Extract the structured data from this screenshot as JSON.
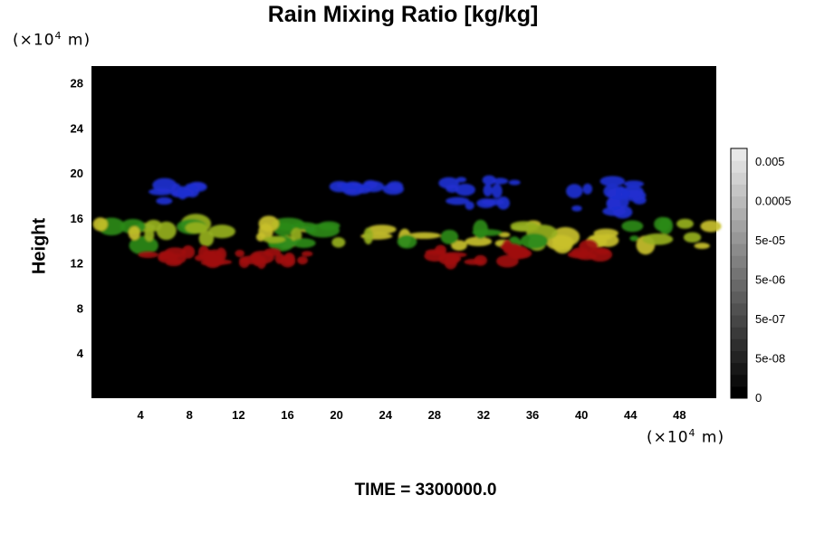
{
  "chart_data": {
    "type": "heatmap",
    "title": "Rain Mixing Ratio [kg/kg]",
    "ylabel": "Height",
    "x_unit_label": "(×10⁴ m)",
    "y_unit_label": "(×10⁴ m)",
    "x_unit_prefix": "(×10",
    "x_unit_exp": "4",
    "x_unit_suffix": " m)",
    "y_unit_prefix": "(×10",
    "y_unit_exp": "4",
    "y_unit_suffix": " m)",
    "xlim": [
      0,
      51
    ],
    "ylim": [
      0,
      29.5
    ],
    "x_ticks": [
      "4",
      "8",
      "12",
      "16",
      "20",
      "24",
      "28",
      "32",
      "36",
      "40",
      "44",
      "48"
    ],
    "y_ticks": [
      "4",
      "8",
      "12",
      "16",
      "20",
      "24",
      "28"
    ],
    "background_color": "#000000",
    "colorbar": {
      "labels": [
        "0.005",
        "0.0005",
        "5e-05",
        "5e-06",
        "5e-07",
        "5e-08",
        "0"
      ],
      "levels": 21,
      "colors": [
        "#000000",
        "#e8e8e8"
      ]
    },
    "features": [
      {
        "layer": "upper",
        "color": "#1f2fd0",
        "x_range": [
          5,
          10.5
        ],
        "y_range": [
          17.5,
          19
        ]
      },
      {
        "layer": "upper",
        "color": "#1f2fd0",
        "x_range": [
          20,
          25
        ],
        "y_range": [
          18.5,
          19
        ]
      },
      {
        "layer": "upper",
        "color": "#1f2fd0",
        "x_range": [
          29,
          36
        ],
        "y_range": [
          17,
          19.5
        ]
      },
      {
        "layer": "upper",
        "color": "#1f2fd0",
        "x_range": [
          39,
          47
        ],
        "y_range": [
          16.5,
          19.5
        ]
      },
      {
        "layer": "middle",
        "color": "#a8b424",
        "x_range": [
          0,
          51
        ],
        "y_range": [
          13.5,
          15.5
        ]
      },
      {
        "layer": "lower",
        "color": "#a01010",
        "x_range": [
          2.5,
          18
        ],
        "y_range": [
          12,
          13
        ]
      },
      {
        "layer": "lower",
        "color": "#a01010",
        "x_range": [
          28,
          35
        ],
        "y_range": [
          12,
          13.5
        ]
      },
      {
        "layer": "lower",
        "color": "#a01010",
        "x_range": [
          39.5,
          42
        ],
        "y_range": [
          12.5,
          13.5
        ]
      }
    ],
    "time_label": "TIME = 3300000.0"
  }
}
